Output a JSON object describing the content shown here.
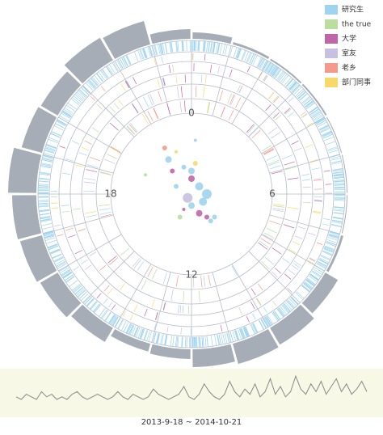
{
  "chart_data": [
    {
      "type": "radial-bar",
      "categories": [
        "0",
        null,
        null,
        null,
        null,
        null,
        "6",
        null,
        null,
        null,
        null,
        null,
        "12",
        null,
        null,
        null,
        null,
        null,
        "18",
        null,
        null,
        null,
        null,
        null
      ],
      "values": [
        8,
        3,
        2,
        2,
        1,
        1,
        1,
        3,
        18,
        24,
        26,
        22,
        12,
        10,
        20,
        25,
        28,
        30,
        35,
        26,
        24,
        32,
        30,
        12
      ],
      "color": "#a7adb6",
      "ylim": [
        0,
        40
      ],
      "legend_items": [
        {
          "name": "研究生",
          "color": "#9fd4ee"
        },
        {
          "name": "the true",
          "color": "#b9dea0"
        },
        {
          "name": "大学",
          "color": "#c066a8"
        },
        {
          "name": "室友",
          "color": "#c8c0e0"
        },
        {
          "name": "老乡",
          "color": "#f59a8a"
        },
        {
          "name": "部门同事",
          "color": "#f7d96a"
        }
      ],
      "legend": "top-right"
    },
    {
      "type": "bubble",
      "x": [
        -0.35,
        -0.3,
        -0.25,
        -0.2,
        -0.1,
        0.0,
        0.05,
        0.1,
        0.2,
        0.15,
        -0.05,
        0.0,
        0.1,
        -0.15,
        0.2,
        0.25,
        -0.6,
        0.3,
        -0.2,
        0.0,
        -0.1,
        0.05
      ],
      "y": [
        0.6,
        0.45,
        0.3,
        0.55,
        0.35,
        0.3,
        0.4,
        0.1,
        0.0,
        -0.1,
        -0.05,
        -0.15,
        -0.25,
        -0.3,
        -0.3,
        -0.35,
        0.25,
        -0.3,
        0.1,
        0.2,
        -0.2,
        0.7
      ],
      "size": [
        3,
        4,
        3,
        2,
        3,
        4,
        3,
        5,
        6,
        5,
        6,
        4,
        4,
        3,
        3,
        3,
        2,
        3,
        3,
        4,
        2,
        2
      ],
      "colors": [
        "#f59a8a",
        "#9fd4ee",
        "#c066a8",
        "#f7d96a",
        "#9fd4ee",
        "#9fd4ee",
        "#f7d96a",
        "#9fd4ee",
        "#9fd4ee",
        "#9fd4ee",
        "#c8c0e0",
        "#9fd4ee",
        "#c066a8",
        "#b9dea0",
        "#c066a8",
        "#9fd4ee",
        "#b9dea0",
        "#9fd4ee",
        "#9fd4ee",
        "#c066a8",
        "#c066a8",
        "#9fd4ee"
      ],
      "xlim": [
        -1,
        1
      ],
      "ylim": [
        -1,
        1
      ]
    },
    {
      "type": "line",
      "range_label": "2013-9-18  ~  2014-10-21",
      "values": [
        1,
        0,
        2,
        1,
        0,
        3,
        1,
        2,
        0,
        1,
        0,
        2,
        3,
        1,
        0,
        1,
        2,
        1,
        0,
        1,
        3,
        1,
        0,
        2,
        1,
        0,
        1,
        4,
        2,
        1,
        0,
        1,
        2,
        5,
        1,
        0,
        2,
        6,
        3,
        1,
        0,
        2,
        7,
        3,
        1,
        4,
        2,
        6,
        1,
        3,
        8,
        2,
        5,
        1,
        3,
        9,
        4,
        2,
        6,
        3,
        7,
        2,
        5,
        8,
        3,
        6,
        2,
        4,
        7,
        3
      ],
      "color": "#888888",
      "ylim": [
        0,
        10
      ]
    }
  ]
}
